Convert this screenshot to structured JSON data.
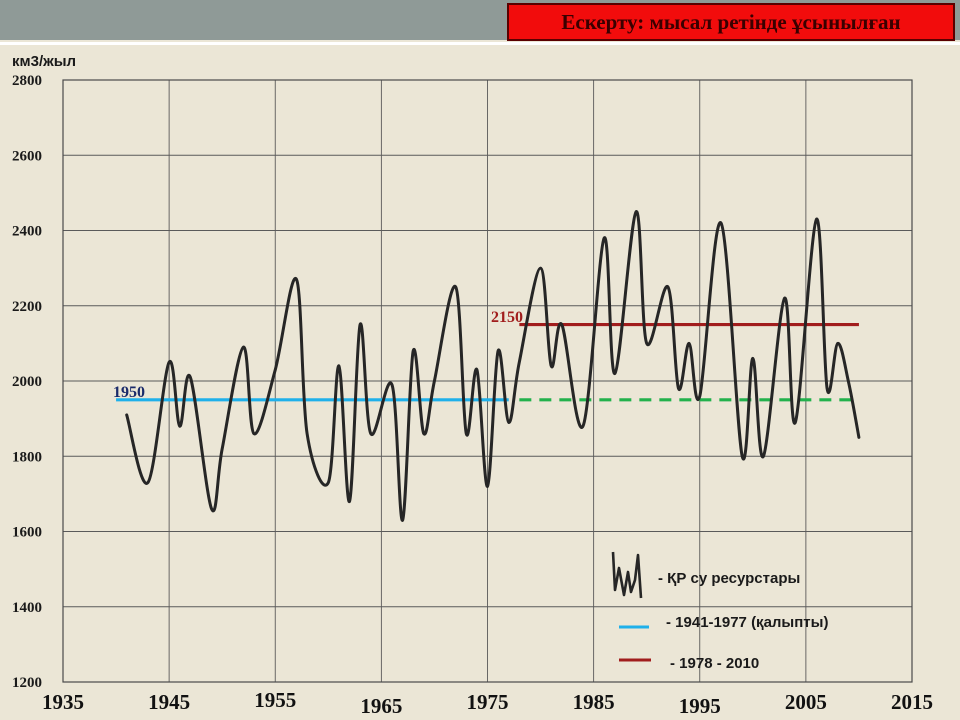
{
  "header": {
    "warning": "Ескерту: мысал ретінде ұсынылған"
  },
  "chart_data": {
    "type": "line",
    "ylabel": "км3/жыл",
    "ylim": [
      1200,
      2800
    ],
    "xlim": [
      1935,
      2015
    ],
    "yticks": [
      1200,
      1400,
      1600,
      1800,
      2000,
      2200,
      2400,
      2600,
      2800
    ],
    "xticks": [
      1935,
      1945,
      1955,
      1965,
      1975,
      1985,
      1995,
      2005,
      2015
    ],
    "grid": true,
    "colors": {
      "resources": "#262626",
      "norm1": "#1fb0ea",
      "norm2": "#a11d1d",
      "norm1_ext": "#22b14c"
    },
    "series": [
      {
        "name": "- ҚР су ресурстары",
        "x": [
          1941,
          1943,
          1945,
          1946,
          1947,
          1949,
          1950,
          1952,
          1953,
          1955,
          1957,
          1958,
          1960,
          1961,
          1962,
          1963,
          1964,
          1966,
          1967,
          1968,
          1969,
          1970,
          1972,
          1973,
          1974,
          1975,
          1976,
          1977,
          1978,
          1980,
          1981,
          1982,
          1984,
          1986,
          1987,
          1989,
          1990,
          1992,
          1993,
          1994,
          1995,
          1997,
          1999,
          2000,
          2001,
          2003,
          2004,
          2006,
          2007,
          2008,
          2009,
          2010
        ],
        "values": [
          1910,
          1730,
          2050,
          1880,
          2010,
          1660,
          1820,
          2090,
          1860,
          2030,
          2270,
          1860,
          1730,
          2040,
          1680,
          2150,
          1860,
          1990,
          1630,
          2080,
          1860,
          2000,
          2250,
          1860,
          2030,
          1720,
          2080,
          1890,
          2050,
          2300,
          2040,
          2150,
          1880,
          2380,
          2020,
          2450,
          2100,
          2250,
          1980,
          2100,
          1960,
          2420,
          1800,
          2060,
          1800,
          2220,
          1890,
          2430,
          1980,
          2100,
          2000,
          1850
        ]
      },
      {
        "name": "- 1941-1977 (қалыпты)",
        "label": "1950",
        "x": [
          1940,
          1977
        ],
        "values": [
          1950,
          1950
        ]
      },
      {
        "name": "- 1978 - 2010",
        "label": "2150",
        "x": [
          1978,
          2010
        ],
        "values": [
          2150,
          2150
        ]
      },
      {
        "x": [
          1978,
          2010
        ],
        "values": [
          1950,
          1950
        ]
      }
    ]
  }
}
